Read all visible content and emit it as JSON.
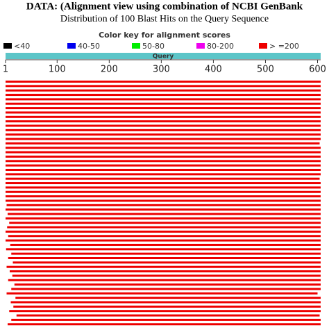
{
  "header": {
    "title": "DATA: (Alignment view using combination of NCBI GenBank",
    "subtitle": "Distribution of 100 Blast Hits on the Query Sequence"
  },
  "color_key": {
    "title": "Color key for alignment scores",
    "items": [
      {
        "label": "<40",
        "color": "#000000"
      },
      {
        "label": "40-50",
        "color": "#0000ee"
      },
      {
        "label": "50-80",
        "color": "#00ee00"
      },
      {
        "label": "80-200",
        "color": "#ee00ee"
      },
      {
        "label": "> =200",
        "color": "#ee0000"
      }
    ]
  },
  "query": {
    "label": "Query",
    "color": "#5cc5c8",
    "xlim": [
      1,
      606
    ],
    "xticks": [
      1,
      100,
      200,
      300,
      400,
      500,
      600
    ]
  },
  "hits": [
    {
      "start": 1,
      "end": 606
    },
    {
      "start": 1,
      "end": 606
    },
    {
      "start": 1,
      "end": 606
    },
    {
      "start": 1,
      "end": 606
    },
    {
      "start": 1,
      "end": 606
    },
    {
      "start": 1,
      "end": 606
    },
    {
      "start": 1,
      "end": 606
    },
    {
      "start": 1,
      "end": 606
    },
    {
      "start": 1,
      "end": 606
    },
    {
      "start": 1,
      "end": 606
    },
    {
      "start": 1,
      "end": 606
    },
    {
      "start": 1,
      "end": 606
    },
    {
      "start": 1,
      "end": 606
    },
    {
      "start": 1,
      "end": 606
    },
    {
      "start": 1,
      "end": 604
    },
    {
      "start": 1,
      "end": 606
    },
    {
      "start": 1,
      "end": 606
    },
    {
      "start": 1,
      "end": 606
    },
    {
      "start": 1,
      "end": 606
    },
    {
      "start": 1,
      "end": 606
    },
    {
      "start": 1,
      "end": 606
    },
    {
      "start": 1,
      "end": 606
    },
    {
      "start": 1,
      "end": 604
    },
    {
      "start": 1,
      "end": 606
    },
    {
      "start": 1,
      "end": 606
    },
    {
      "start": 1,
      "end": 606
    },
    {
      "start": 1,
      "end": 606
    },
    {
      "start": 1,
      "end": 606
    },
    {
      "start": 3,
      "end": 606
    },
    {
      "start": 1,
      "end": 606
    },
    {
      "start": 5,
      "end": 606
    },
    {
      "start": 1,
      "end": 606
    },
    {
      "start": 8,
      "end": 606
    },
    {
      "start": 4,
      "end": 606
    },
    {
      "start": 1,
      "end": 606
    },
    {
      "start": 6,
      "end": 606
    },
    {
      "start": 1,
      "end": 606
    },
    {
      "start": 10,
      "end": 606
    },
    {
      "start": 2,
      "end": 606
    },
    {
      "start": 12,
      "end": 606
    },
    {
      "start": 6,
      "end": 606
    },
    {
      "start": 15,
      "end": 606
    },
    {
      "start": 3,
      "end": 606
    },
    {
      "start": 9,
      "end": 606
    },
    {
      "start": 14,
      "end": 606
    },
    {
      "start": 6,
      "end": 606
    },
    {
      "start": 18,
      "end": 606
    },
    {
      "start": 12,
      "end": 606
    },
    {
      "start": 3,
      "end": 600
    },
    {
      "start": 20,
      "end": 606
    },
    {
      "start": 11,
      "end": 606
    },
    {
      "start": 16,
      "end": 606
    },
    {
      "start": 8,
      "end": 606
    },
    {
      "start": 22,
      "end": 604
    },
    {
      "start": 12,
      "end": 606
    },
    {
      "start": 5,
      "end": 606
    }
  ]
}
